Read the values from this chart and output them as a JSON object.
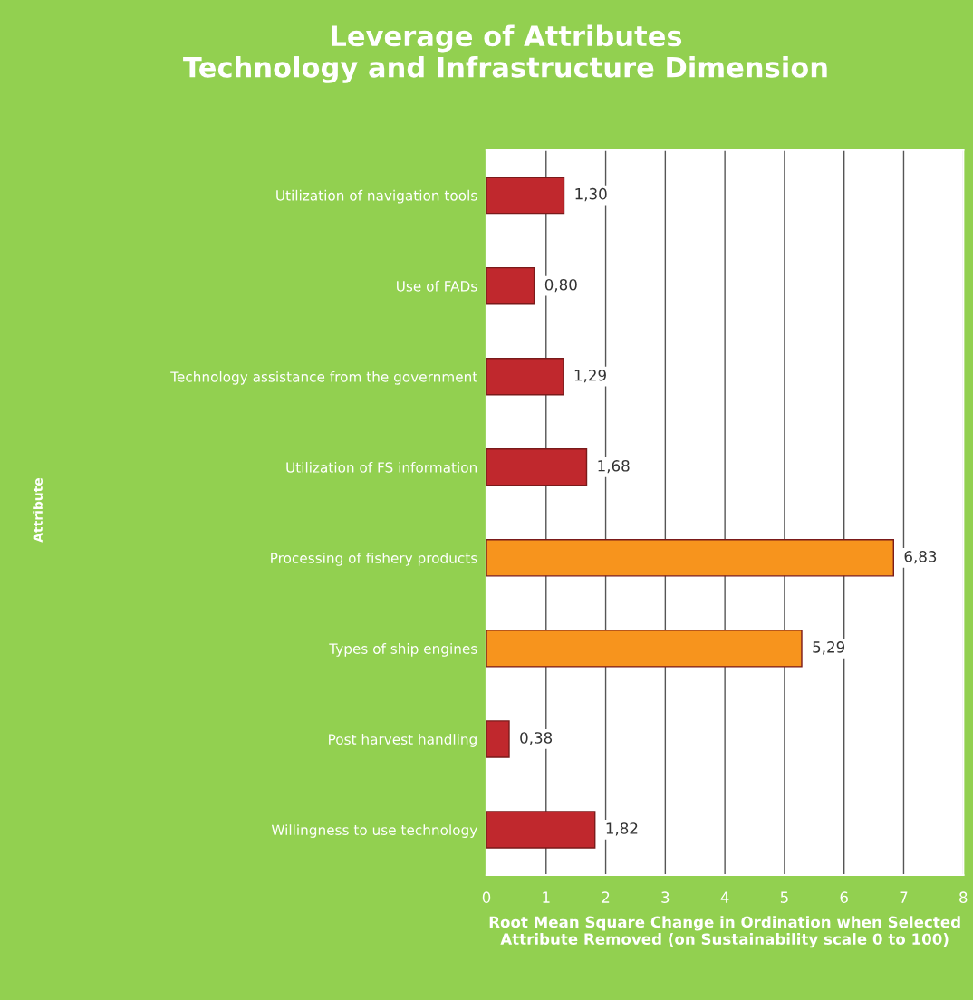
{
  "chart_data": {
    "type": "bar",
    "orientation": "horizontal",
    "title": "Leverage of Attributes\nTechnology and Infrastructure Dimension",
    "annotations": [
      "Attribute"
    ],
    "xlabel": "Root Mean Square Change in Ordination when Selected Attribute Removed (on Sustainability scale 0 to 100)",
    "categories": [
      "Utilization of navigation tools",
      "Use of FADs",
      "Technology assistance from the government",
      "Utilization of FS information",
      "Processing of fishery products",
      "Types of ship engines",
      "Post harvest handling",
      "Willingness to use technology"
    ],
    "values": [
      1.3,
      0.8,
      1.29,
      1.68,
      6.83,
      5.29,
      0.38,
      1.82
    ],
    "value_labels": [
      "1,30",
      "0,80",
      "1,29",
      "1,68",
      "6,83",
      "5,29",
      "0,38",
      "1,82"
    ],
    "colors": [
      "#c0282d",
      "#c0282d",
      "#c0282d",
      "#c0282d",
      "#f7941d",
      "#f7941d",
      "#c0282d",
      "#c0282d"
    ],
    "xlim": [
      0,
      8
    ],
    "xticks": [
      0,
      1,
      2,
      3,
      4,
      5,
      6,
      7,
      8
    ],
    "grid": "x"
  }
}
